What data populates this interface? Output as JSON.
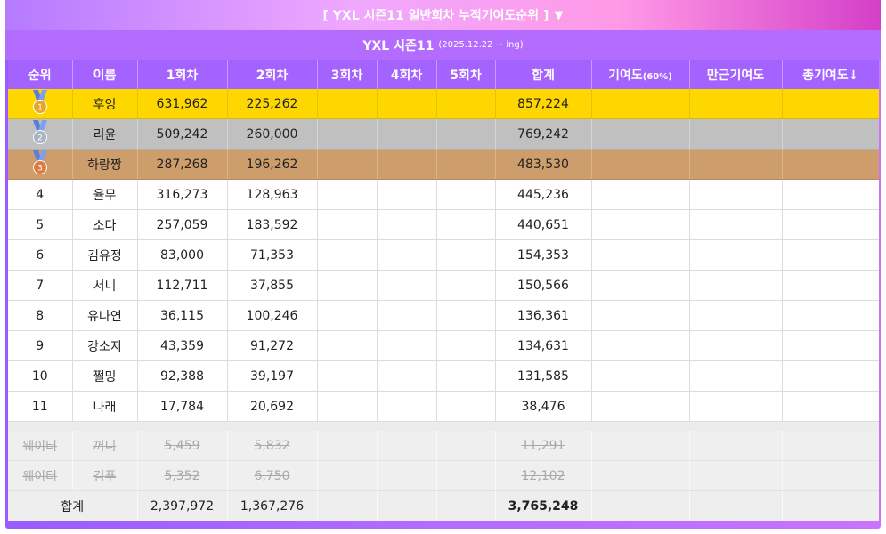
{
  "header": {
    "title": "[ YXL 시즌11 일반회차 누적기여도순위 ]",
    "toggle_icon": "▼",
    "season_name": "YXL 시즌11",
    "season_range": "(2025.12.22 ~ ing)"
  },
  "columns": {
    "rank": "순위",
    "name": "이름",
    "r1": "1회차",
    "r2": "2회차",
    "r3": "3회차",
    "r4": "4회차",
    "r5": "5회차",
    "sum": "합계",
    "contrib": "기여도",
    "contrib_pct": "(60%)",
    "mangeun": "만근기여도",
    "total_contrib": "총기여도↓"
  },
  "colors": {
    "gold": "#ffd700",
    "silver": "#c0c0c0",
    "bronze": "#cd9d6b",
    "header_purple": "#a462ff"
  },
  "medals": [
    {
      "label": "1",
      "icon": "gold-medal-icon",
      "ribbon": "#5b7fd8",
      "disc": "#e8a52f"
    },
    {
      "label": "2",
      "icon": "silver-medal-icon",
      "ribbon": "#5b7fd8",
      "disc": "#a9b4c2"
    },
    {
      "label": "3",
      "icon": "bronze-medal-icon",
      "ribbon": "#5b7fd8",
      "disc": "#e07b3c"
    }
  ],
  "rows": [
    {
      "rank": "",
      "name": "후잉",
      "r1": "631,962",
      "r2": "225,262",
      "r3": "",
      "r4": "",
      "r5": "",
      "sum": "857,224",
      "contrib": "",
      "mangeun": "",
      "total": ""
    },
    {
      "rank": "",
      "name": "리윤",
      "r1": "509,242",
      "r2": "260,000",
      "r3": "",
      "r4": "",
      "r5": "",
      "sum": "769,242",
      "contrib": "",
      "mangeun": "",
      "total": ""
    },
    {
      "rank": "",
      "name": "하랑짱",
      "r1": "287,268",
      "r2": "196,262",
      "r3": "",
      "r4": "",
      "r5": "",
      "sum": "483,530",
      "contrib": "",
      "mangeun": "",
      "total": ""
    },
    {
      "rank": "4",
      "name": "율무",
      "r1": "316,273",
      "r2": "128,963",
      "r3": "",
      "r4": "",
      "r5": "",
      "sum": "445,236",
      "contrib": "",
      "mangeun": "",
      "total": ""
    },
    {
      "rank": "5",
      "name": "소다",
      "r1": "257,059",
      "r2": "183,592",
      "r3": "",
      "r4": "",
      "r5": "",
      "sum": "440,651",
      "contrib": "",
      "mangeun": "",
      "total": ""
    },
    {
      "rank": "6",
      "name": "김유정",
      "r1": "83,000",
      "r2": "71,353",
      "r3": "",
      "r4": "",
      "r5": "",
      "sum": "154,353",
      "contrib": "",
      "mangeun": "",
      "total": ""
    },
    {
      "rank": "7",
      "name": "서니",
      "r1": "112,711",
      "r2": "37,855",
      "r3": "",
      "r4": "",
      "r5": "",
      "sum": "150,566",
      "contrib": "",
      "mangeun": "",
      "total": ""
    },
    {
      "rank": "8",
      "name": "유나연",
      "r1": "36,115",
      "r2": "100,246",
      "r3": "",
      "r4": "",
      "r5": "",
      "sum": "136,361",
      "contrib": "",
      "mangeun": "",
      "total": ""
    },
    {
      "rank": "9",
      "name": "강소지",
      "r1": "43,359",
      "r2": "91,272",
      "r3": "",
      "r4": "",
      "r5": "",
      "sum": "134,631",
      "contrib": "",
      "mangeun": "",
      "total": ""
    },
    {
      "rank": "10",
      "name": "쩔밍",
      "r1": "92,388",
      "r2": "39,197",
      "r3": "",
      "r4": "",
      "r5": "",
      "sum": "131,585",
      "contrib": "",
      "mangeun": "",
      "total": ""
    },
    {
      "rank": "11",
      "name": "나래",
      "r1": "17,784",
      "r2": "20,692",
      "r3": "",
      "r4": "",
      "r5": "",
      "sum": "38,476",
      "contrib": "",
      "mangeun": "",
      "total": ""
    }
  ],
  "waiters": [
    {
      "rank": "웨이터",
      "name": "꺼니",
      "r1": "5,459",
      "r2": "5,832",
      "r3": "",
      "r4": "",
      "r5": "",
      "sum": "11,291",
      "contrib": "",
      "mangeun": "",
      "total": ""
    },
    {
      "rank": "웨이터",
      "name": "김푸",
      "r1": "5,352",
      "r2": "6,750",
      "r3": "",
      "r4": "",
      "r5": "",
      "sum": "12,102",
      "contrib": "",
      "mangeun": "",
      "total": ""
    }
  ],
  "totals": {
    "label": "합계",
    "r1": "2,397,972",
    "r2": "1,367,276",
    "r3": "",
    "r4": "",
    "r5": "",
    "sum": "3,765,248",
    "contrib": "",
    "mangeun": "",
    "total": ""
  }
}
